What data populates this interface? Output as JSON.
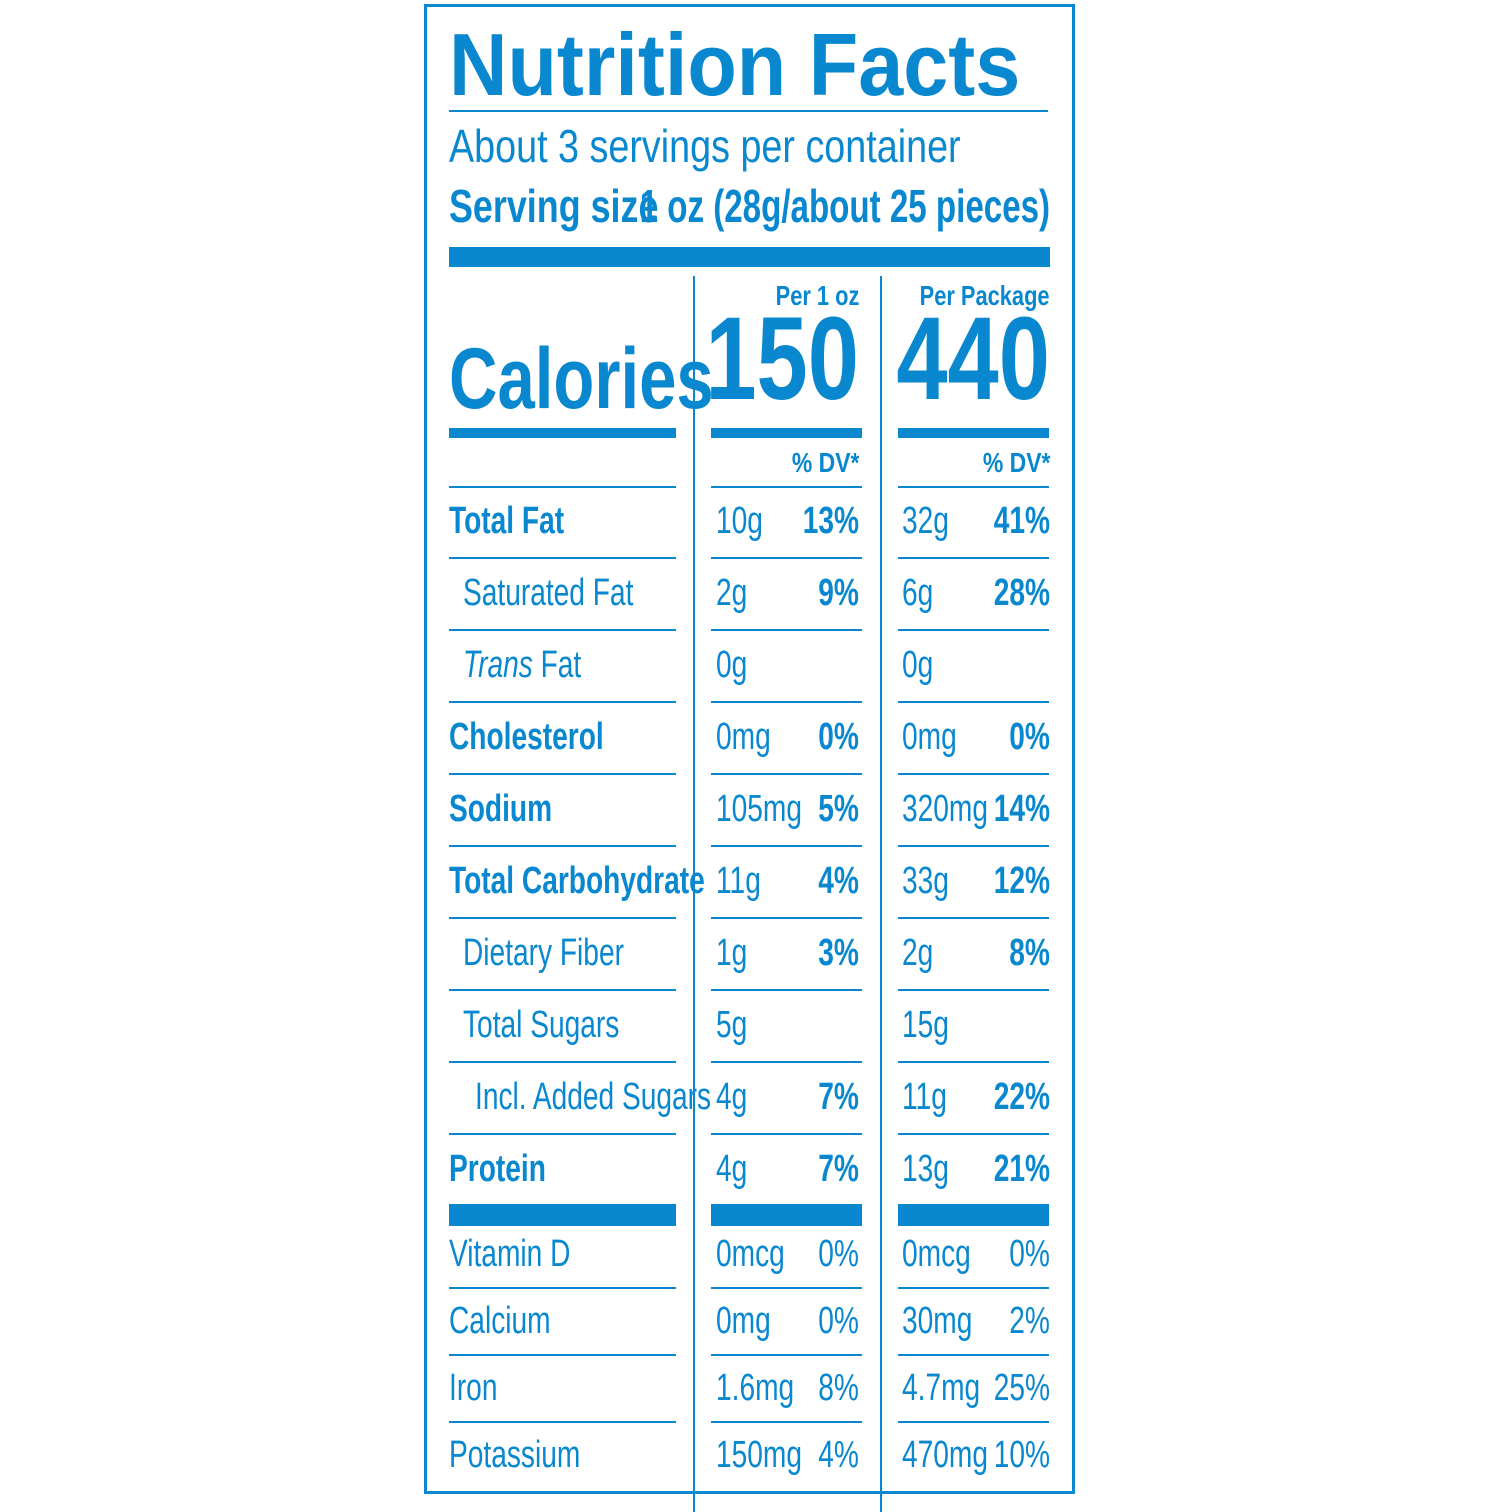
{
  "header": {
    "title": "Nutrition Facts",
    "servings_per_container": "About 3 servings per container",
    "serving_size_label": "Serving size",
    "serving_size_value": "1 oz (28g/about 25 pieces)"
  },
  "calories": {
    "label": "Calories",
    "col1_header": "Per 1 oz",
    "col2_header": "Per Package",
    "col1_value": "150",
    "col2_value": "440",
    "dv_header": "% DV*"
  },
  "nutrients": [
    {
      "label": "Total Fat",
      "bold": true,
      "indent": 0,
      "a1": "10g",
      "p1": "13%",
      "a2": "32g",
      "p2": "41%"
    },
    {
      "label": "Saturated Fat",
      "bold": false,
      "indent": 1,
      "a1": "2g",
      "p1": "9%",
      "a2": "6g",
      "p2": "28%"
    },
    {
      "label_italic": "Trans",
      "label": " Fat",
      "bold": false,
      "indent": 1,
      "a1": "0g",
      "p1": "",
      "a2": "0g",
      "p2": ""
    },
    {
      "label": "Cholesterol",
      "bold": true,
      "indent": 0,
      "a1": "0mg",
      "p1": "0%",
      "a2": "0mg",
      "p2": "0%"
    },
    {
      "label": "Sodium",
      "bold": true,
      "indent": 0,
      "a1": "105mg",
      "p1": "5%",
      "a2": "320mg",
      "p2": "14%"
    },
    {
      "label": "Total Carbohydrate",
      "bold": true,
      "indent": 0,
      "a1": "11g",
      "p1": "4%",
      "a2": "33g",
      "p2": "12%"
    },
    {
      "label": "Dietary Fiber",
      "bold": false,
      "indent": 1,
      "a1": "1g",
      "p1": "3%",
      "a2": "2g",
      "p2": "8%"
    },
    {
      "label": "Total Sugars",
      "bold": false,
      "indent": 1,
      "a1": "5g",
      "p1": "",
      "a2": "15g",
      "p2": ""
    },
    {
      "label": "Incl. Added Sugars",
      "bold": false,
      "indent": 2,
      "a1": "4g",
      "p1": "7%",
      "a2": "11g",
      "p2": "22%"
    },
    {
      "label": "Protein",
      "bold": true,
      "indent": 0,
      "a1": "4g",
      "p1": "7%",
      "a2": "13g",
      "p2": "21%"
    }
  ],
  "vitamins": [
    {
      "label": "Vitamin D",
      "a1": "0mcg",
      "p1": "0%",
      "a2": "0mcg",
      "p2": "0%"
    },
    {
      "label": "Calcium",
      "a1": "0mg",
      "p1": "0%",
      "a2": "30mg",
      "p2": "2%"
    },
    {
      "label": "Iron",
      "a1": "1.6mg",
      "p1": "8%",
      "a2": "4.7mg",
      "p2": "25%"
    },
    {
      "label": "Potassium",
      "a1": "150mg",
      "p1": "4%",
      "a2": "470mg",
      "p2": "10%"
    }
  ]
}
